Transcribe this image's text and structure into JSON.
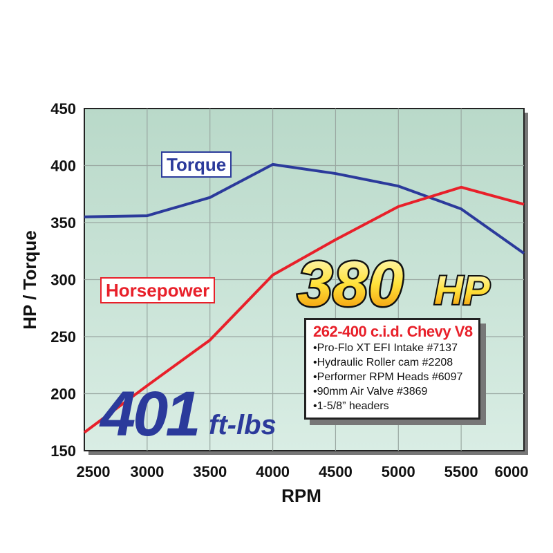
{
  "chart_data": {
    "type": "line",
    "title": "",
    "xlabel": "RPM",
    "ylabel": "HP / Torque",
    "xlim": [
      2500,
      6000
    ],
    "ylim": [
      150,
      450
    ],
    "x": [
      2500,
      3000,
      3500,
      4000,
      4500,
      5000,
      5500,
      6000
    ],
    "xticks": [
      "2500",
      "3000",
      "3500",
      "4000",
      "4500",
      "5000",
      "5500",
      "6000"
    ],
    "yticks": [
      "150",
      "200",
      "250",
      "300",
      "350",
      "400",
      "450"
    ],
    "grid": true,
    "series": [
      {
        "name": "Torque",
        "color": "#2b3a9b",
        "values": [
          355,
          356,
          372,
          401,
          393,
          382,
          362,
          323
        ]
      },
      {
        "name": "Horsepower",
        "color": "#e8202a",
        "values": [
          166,
          207,
          247,
          304,
          335,
          364,
          381,
          366
        ]
      }
    ],
    "annotations": {
      "hp_big": "380",
      "hp_unit": "HP",
      "torque_big": "401",
      "torque_unit": "ft-lbs"
    },
    "background": "#c0ddd0"
  },
  "spec_box": {
    "title": "262-400 c.i.d. Chevy V8",
    "items": [
      "Pro-Flo XT EFI Intake #7137",
      "Hydraulic Roller cam #2208",
      "Performer RPM Heads #6097",
      "90mm Air Valve #3869",
      "1-5/8” headers"
    ]
  }
}
